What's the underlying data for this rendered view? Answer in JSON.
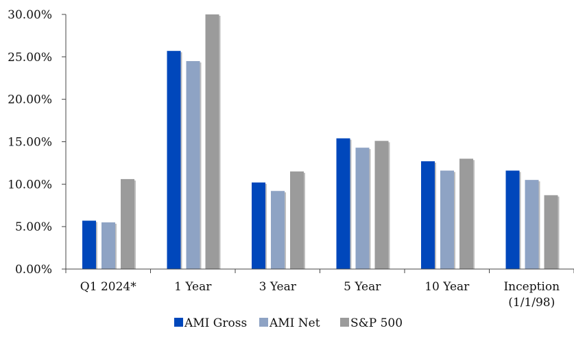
{
  "chart_data": {
    "type": "bar",
    "categories": [
      [
        "Q1 2024*"
      ],
      [
        "1 Year"
      ],
      [
        "3 Year"
      ],
      [
        "5 Year"
      ],
      [
        "10 Year"
      ],
      [
        "Inception",
        "(1/1/98)"
      ]
    ],
    "series": [
      {
        "name": "AMI Gross",
        "color": "#0047BB",
        "values": [
          5.7,
          25.7,
          10.2,
          15.4,
          12.7,
          11.6
        ]
      },
      {
        "name": "AMI Net",
        "color": "#8EA3C4",
        "values": [
          5.5,
          24.5,
          9.2,
          14.3,
          11.6,
          10.5
        ]
      },
      {
        "name": "S&P 500",
        "color": "#9B9B9B",
        "values": [
          10.6,
          30.0,
          11.5,
          15.1,
          13.0,
          8.7
        ]
      }
    ],
    "yticks": [
      "0.00%",
      "5.00%",
      "10.00%",
      "15.00%",
      "20.00%",
      "25.00%",
      "30.00%"
    ],
    "ylim": [
      0,
      30
    ],
    "grid": false,
    "legend": "bottom"
  }
}
